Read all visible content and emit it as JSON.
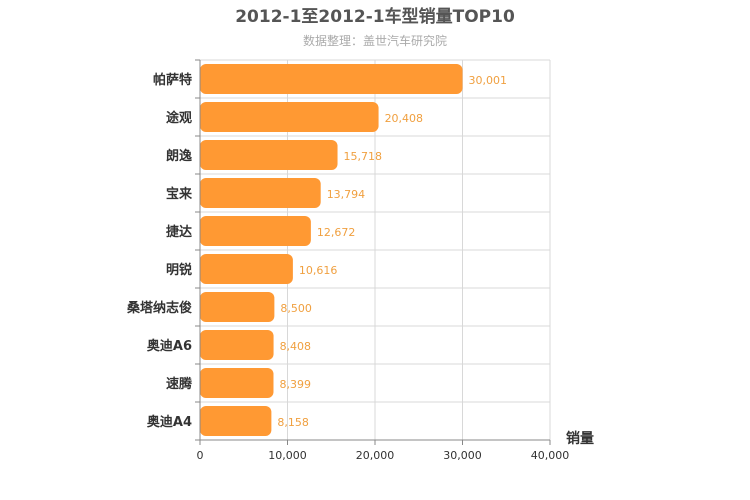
{
  "chart_data": {
    "type": "bar",
    "orientation": "horizontal",
    "title": "2012-1至2012-1车型销量TOP10",
    "subtitle": "数据整理：盖世汽车研究院",
    "xlabel": "销量",
    "ylabel": "",
    "xlim": [
      0,
      40000
    ],
    "xticks": [
      0,
      10000,
      20000,
      30000,
      40000
    ],
    "xtick_labels": [
      "0",
      "10,000",
      "20,000",
      "30,000",
      "40,000"
    ],
    "categories": [
      "帕萨特",
      "途观",
      "朗逸",
      "宝来",
      "捷达",
      "明锐",
      "桑塔纳志俊",
      "奥迪A6",
      "速腾",
      "奥迪A4"
    ],
    "values": [
      30001,
      20408,
      15718,
      13794,
      12672,
      10616,
      8500,
      8408,
      8399,
      8158
    ],
    "value_labels": [
      "30,001",
      "20,408",
      "15,718",
      "13,794",
      "12,672",
      "10,616",
      "8,500",
      "8,408",
      "8,399",
      "8,158"
    ],
    "grid": true,
    "legend": "none",
    "colors": {
      "bar": "#ff9933",
      "value_label": "#f0a040",
      "grid": "#d8d8d8",
      "axis": "#888888",
      "title": "#555555",
      "subtitle": "#aaaaaa"
    }
  }
}
